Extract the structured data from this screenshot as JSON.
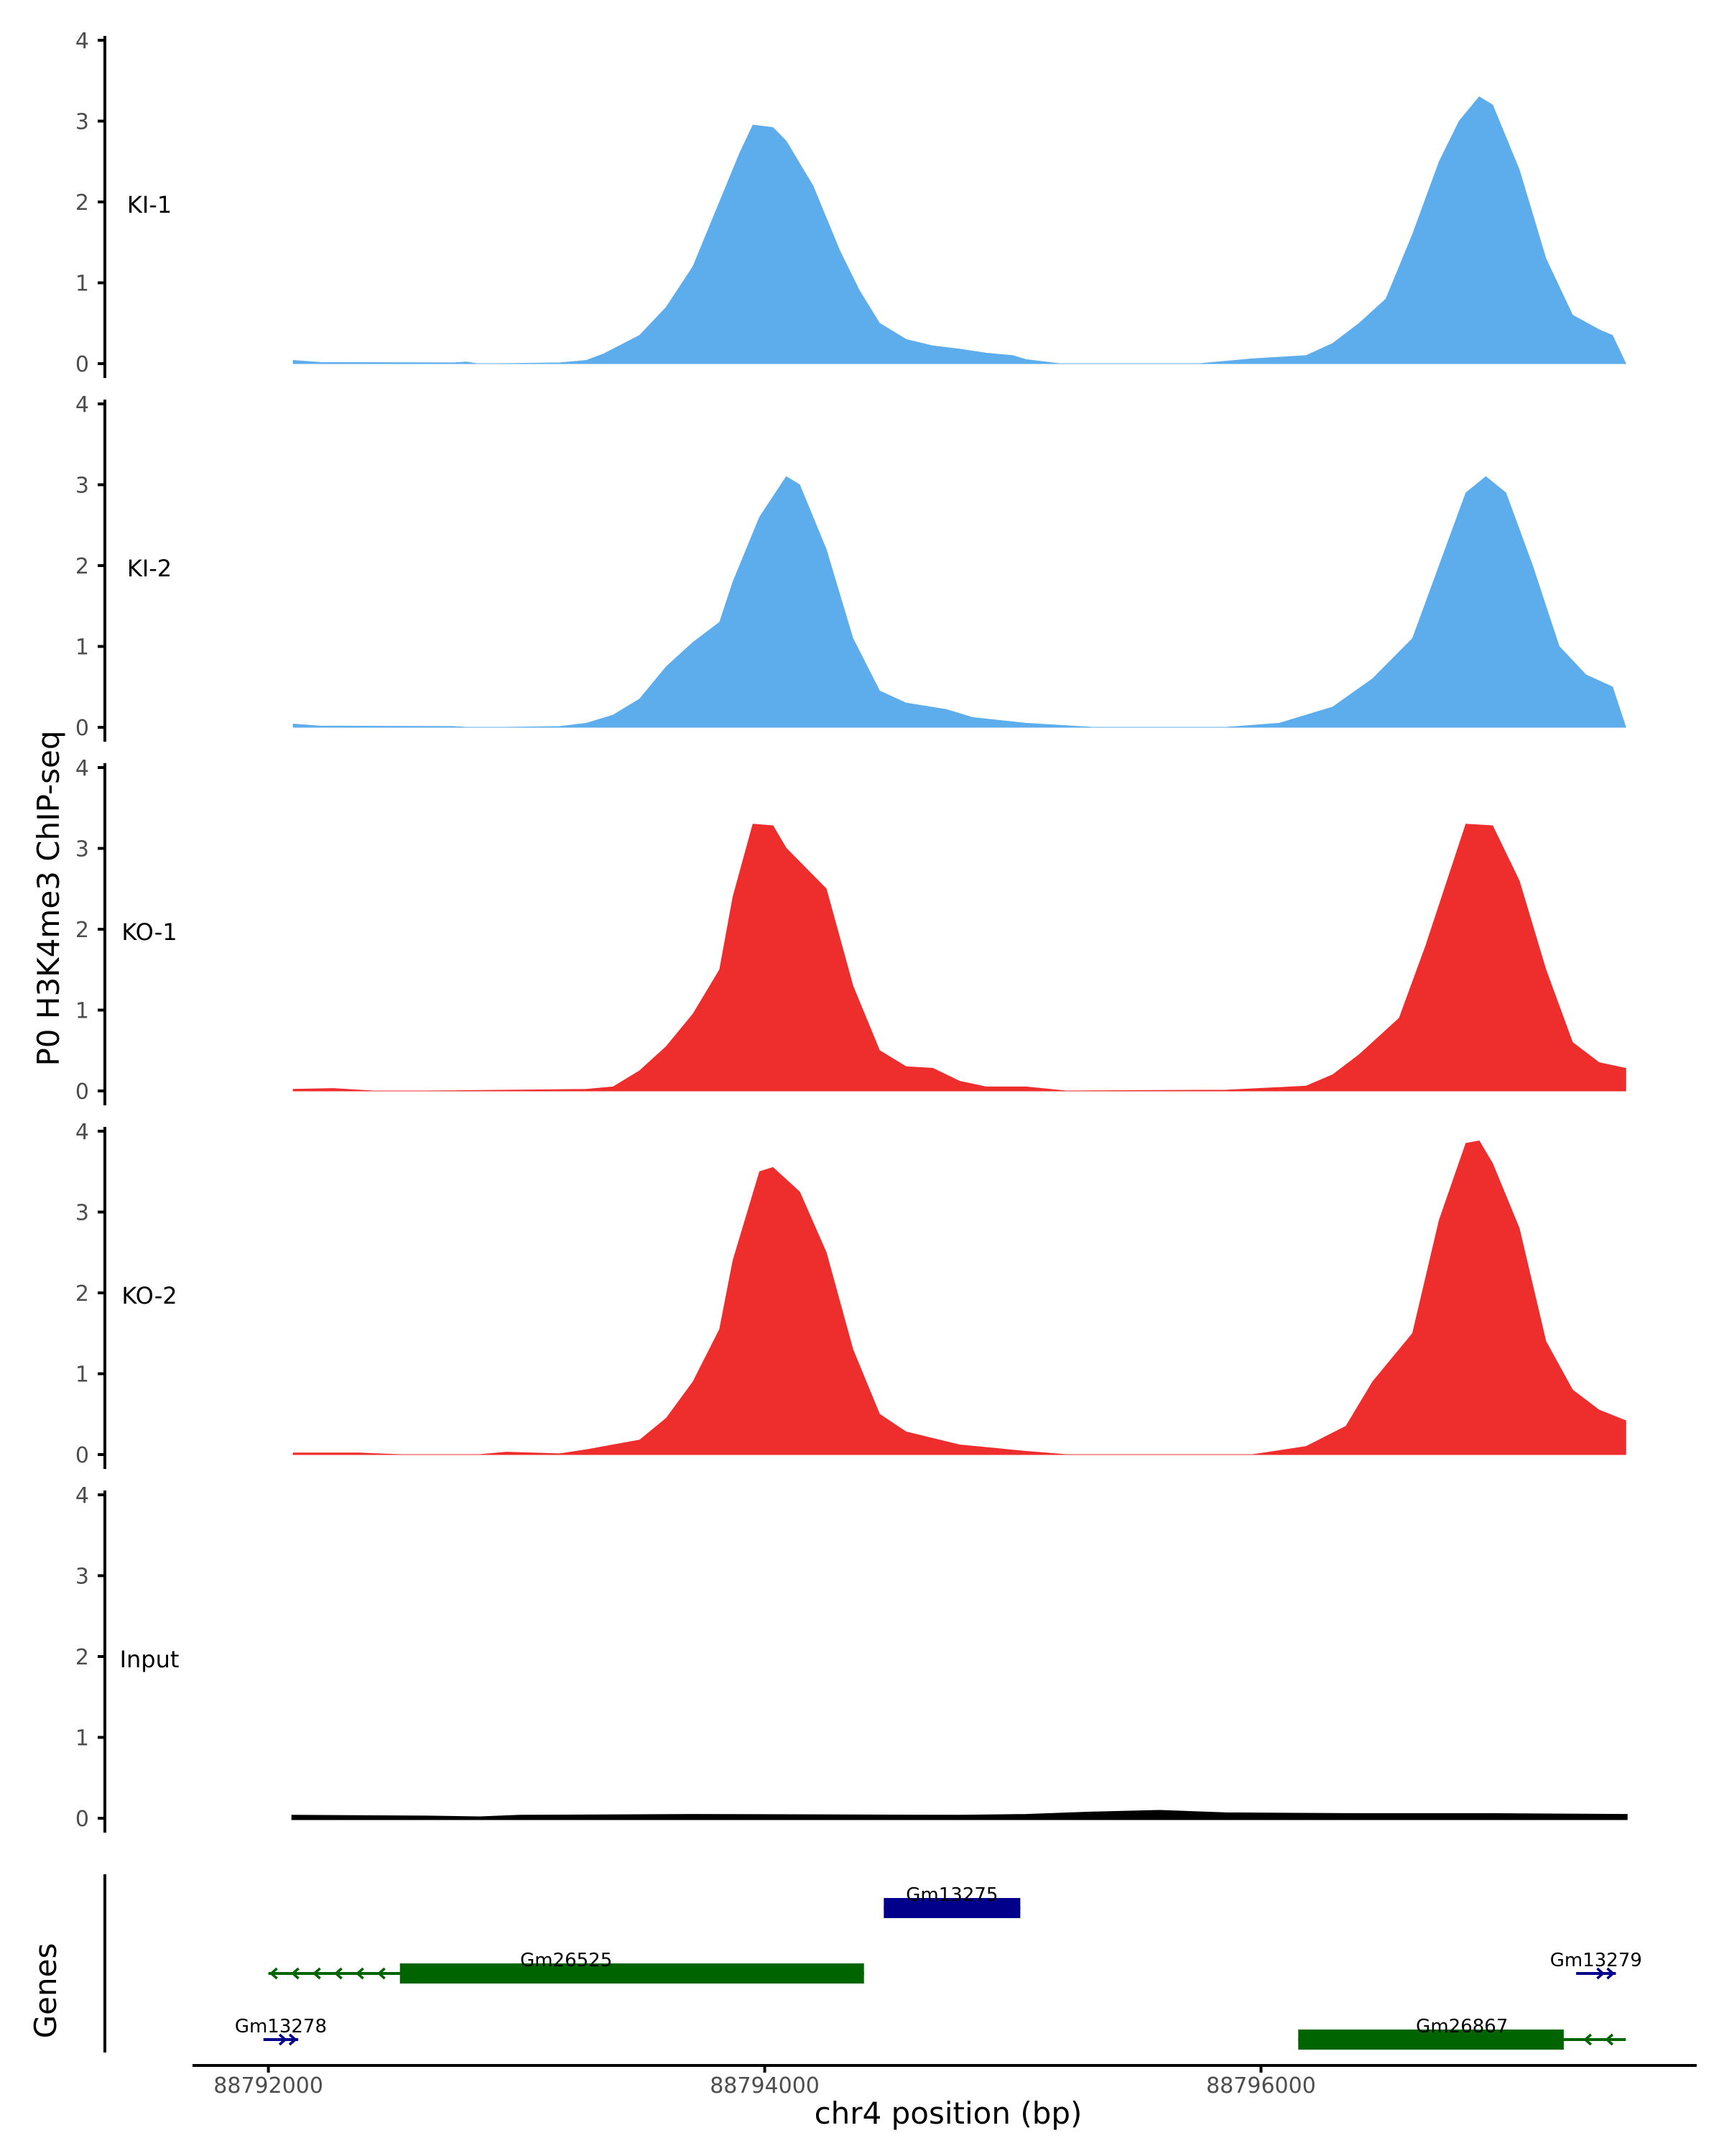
{
  "chart_data": {
    "type": "area",
    "title": "",
    "ylabel": "P0 H3K4me3 ChIP-seq",
    "xlabel": "chr4 position (bp)",
    "gene_panel_label": "Genes",
    "xlim": [
      88791700,
      88797750
    ],
    "data_xrange": [
      88792100,
      88797470
    ],
    "ylim": [
      0,
      4
    ],
    "y_ticks": [
      "0",
      "1",
      "2",
      "3",
      "4"
    ],
    "x_ticks": [
      {
        "value": 88792000,
        "label": "88792000"
      },
      {
        "value": 88794000,
        "label": "88794000"
      },
      {
        "value": 88796000,
        "label": "88796000"
      }
    ],
    "tracks": [
      {
        "name": "KI-1",
        "color": "#5DADEC",
        "baseline": [
          [
            0,
            0.04
          ],
          [
            0.02,
            0.015
          ],
          [
            0.12,
            0.01
          ],
          [
            0.13,
            0.02
          ],
          [
            0.138,
            0
          ],
          [
            0.155,
            0
          ],
          [
            0.2,
            0.01
          ],
          [
            0.22,
            0.04
          ],
          [
            0.233,
            0.12
          ],
          [
            0.26,
            0.35
          ],
          [
            0.28,
            0.7
          ],
          [
            0.3,
            1.2
          ],
          [
            0.32,
            2.0
          ],
          [
            0.335,
            2.6
          ],
          [
            0.345,
            2.95
          ],
          [
            0.36,
            2.92
          ],
          [
            0.37,
            2.75
          ],
          [
            0.39,
            2.2
          ],
          [
            0.41,
            1.4
          ],
          [
            0.425,
            0.9
          ],
          [
            0.44,
            0.5
          ],
          [
            0.46,
            0.3
          ],
          [
            0.48,
            0.22
          ],
          [
            0.5,
            0.18
          ],
          [
            0.52,
            0.13
          ],
          [
            0.54,
            0.1
          ],
          [
            0.55,
            0.05
          ],
          [
            0.575,
            0
          ],
          [
            0.68,
            0
          ],
          [
            0.7,
            0.03
          ],
          [
            0.72,
            0.06
          ],
          [
            0.76,
            0.1
          ],
          [
            0.78,
            0.25
          ],
          [
            0.8,
            0.5
          ],
          [
            0.82,
            0.8
          ],
          [
            0.84,
            1.6
          ],
          [
            0.86,
            2.5
          ],
          [
            0.875,
            3.0
          ],
          [
            0.89,
            3.3
          ],
          [
            0.9,
            3.2
          ],
          [
            0.92,
            2.4
          ],
          [
            0.94,
            1.3
          ],
          [
            0.96,
            0.6
          ],
          [
            0.98,
            0.42
          ],
          [
            0.99,
            0.35
          ],
          [
            1.0,
            0
          ]
        ],
        "peak_scale": 1.0
      },
      {
        "name": "KI-2",
        "color": "#5DADEC",
        "baseline": [
          [
            0,
            0.04
          ],
          [
            0.02,
            0.015
          ],
          [
            0.12,
            0.01
          ],
          [
            0.13,
            0
          ],
          [
            0.16,
            0
          ],
          [
            0.2,
            0.01
          ],
          [
            0.22,
            0.05
          ],
          [
            0.24,
            0.15
          ],
          [
            0.26,
            0.35
          ],
          [
            0.28,
            0.75
          ],
          [
            0.3,
            1.05
          ],
          [
            0.32,
            1.3
          ],
          [
            0.33,
            1.8
          ],
          [
            0.35,
            2.6
          ],
          [
            0.37,
            3.1
          ],
          [
            0.38,
            3.0
          ],
          [
            0.4,
            2.2
          ],
          [
            0.42,
            1.1
          ],
          [
            0.44,
            0.45
          ],
          [
            0.46,
            0.3
          ],
          [
            0.49,
            0.22
          ],
          [
            0.51,
            0.12
          ],
          [
            0.55,
            0.05
          ],
          [
            0.6,
            0
          ],
          [
            0.7,
            0
          ],
          [
            0.74,
            0.05
          ],
          [
            0.78,
            0.25
          ],
          [
            0.81,
            0.6
          ],
          [
            0.84,
            1.1
          ],
          [
            0.86,
            2.0
          ],
          [
            0.88,
            2.9
          ],
          [
            0.895,
            3.1
          ],
          [
            0.91,
            2.9
          ],
          [
            0.93,
            2.0
          ],
          [
            0.95,
            1.0
          ],
          [
            0.97,
            0.65
          ],
          [
            0.99,
            0.5
          ],
          [
            1.0,
            0
          ]
        ],
        "peak_scale": 1.0
      },
      {
        "name": "KO-1",
        "color": "#EE2D2D",
        "baseline": [
          [
            0,
            0.02
          ],
          [
            0.03,
            0.03
          ],
          [
            0.06,
            0
          ],
          [
            0.1,
            0
          ],
          [
            0.22,
            0.02
          ],
          [
            0.24,
            0.05
          ],
          [
            0.26,
            0.25
          ],
          [
            0.28,
            0.55
          ],
          [
            0.3,
            0.95
          ],
          [
            0.32,
            1.5
          ],
          [
            0.33,
            2.4
          ],
          [
            0.345,
            3.3
          ],
          [
            0.36,
            3.28
          ],
          [
            0.37,
            3.0
          ],
          [
            0.4,
            2.5
          ],
          [
            0.42,
            1.3
          ],
          [
            0.44,
            0.5
          ],
          [
            0.46,
            0.3
          ],
          [
            0.48,
            0.28
          ],
          [
            0.5,
            0.12
          ],
          [
            0.52,
            0.05
          ],
          [
            0.55,
            0.05
          ],
          [
            0.58,
            0
          ],
          [
            0.7,
            0.01
          ],
          [
            0.76,
            0.06
          ],
          [
            0.78,
            0.2
          ],
          [
            0.8,
            0.45
          ],
          [
            0.83,
            0.9
          ],
          [
            0.85,
            1.8
          ],
          [
            0.87,
            2.8
          ],
          [
            0.88,
            3.3
          ],
          [
            0.9,
            3.28
          ],
          [
            0.92,
            2.6
          ],
          [
            0.94,
            1.5
          ],
          [
            0.96,
            0.6
          ],
          [
            0.98,
            0.35
          ],
          [
            1.0,
            0.28
          ]
        ],
        "peak_scale": 1.0
      },
      {
        "name": "KO-2",
        "color": "#EE2D2D",
        "baseline": [
          [
            0,
            0.02
          ],
          [
            0.05,
            0.02
          ],
          [
            0.08,
            0
          ],
          [
            0.14,
            0
          ],
          [
            0.16,
            0.03
          ],
          [
            0.2,
            0.01
          ],
          [
            0.22,
            0.06
          ],
          [
            0.24,
            0.12
          ],
          [
            0.26,
            0.18
          ],
          [
            0.28,
            0.45
          ],
          [
            0.3,
            0.9
          ],
          [
            0.32,
            1.55
          ],
          [
            0.33,
            2.4
          ],
          [
            0.35,
            3.5
          ],
          [
            0.36,
            3.55
          ],
          [
            0.38,
            3.25
          ],
          [
            0.4,
            2.5
          ],
          [
            0.42,
            1.3
          ],
          [
            0.44,
            0.5
          ],
          [
            0.46,
            0.28
          ],
          [
            0.48,
            0.2
          ],
          [
            0.5,
            0.12
          ],
          [
            0.55,
            0.04
          ],
          [
            0.58,
            0
          ],
          [
            0.72,
            0
          ],
          [
            0.76,
            0.1
          ],
          [
            0.79,
            0.35
          ],
          [
            0.81,
            0.9
          ],
          [
            0.84,
            1.5
          ],
          [
            0.86,
            2.9
          ],
          [
            0.88,
            3.85
          ],
          [
            0.89,
            3.88
          ],
          [
            0.9,
            3.6
          ],
          [
            0.92,
            2.8
          ],
          [
            0.94,
            1.4
          ],
          [
            0.96,
            0.8
          ],
          [
            0.98,
            0.55
          ],
          [
            1.0,
            0.42
          ]
        ],
        "peak_scale": 1.0
      },
      {
        "name": "Input",
        "color": "#000000",
        "baseline": [
          [
            0,
            0.02
          ],
          [
            0.1,
            0.01
          ],
          [
            0.14,
            0
          ],
          [
            0.17,
            0.02
          ],
          [
            0.3,
            0.03
          ],
          [
            0.5,
            0.02
          ],
          [
            0.55,
            0.03
          ],
          [
            0.6,
            0.06
          ],
          [
            0.65,
            0.08
          ],
          [
            0.7,
            0.05
          ],
          [
            0.8,
            0.04
          ],
          [
            0.9,
            0.04
          ],
          [
            1.0,
            0.03
          ]
        ],
        "peak_scale": 1.0
      }
    ],
    "genes": [
      {
        "name": "Gm13275",
        "color": "#00008B",
        "start": 88794480,
        "end": 88795030,
        "strand": "+",
        "row": 1
      },
      {
        "name": "Gm26525",
        "color": "#006400",
        "start": 88792000,
        "end": 88794400,
        "thick_start": 88792530,
        "strand": "-",
        "row": 2
      },
      {
        "name": "Gm13279",
        "color": "#00008B",
        "start": 88797270,
        "end": 88797430,
        "strand": "+",
        "row": 2
      },
      {
        "name": "Gm13278",
        "color": "#00008B",
        "start": 88791980,
        "end": 88792120,
        "strand": "+",
        "row": 3
      },
      {
        "name": "Gm26867",
        "color": "#006400",
        "start": 88796150,
        "end": 88797470,
        "thick_end": 88797220,
        "strand": "-",
        "row": 3
      }
    ]
  }
}
